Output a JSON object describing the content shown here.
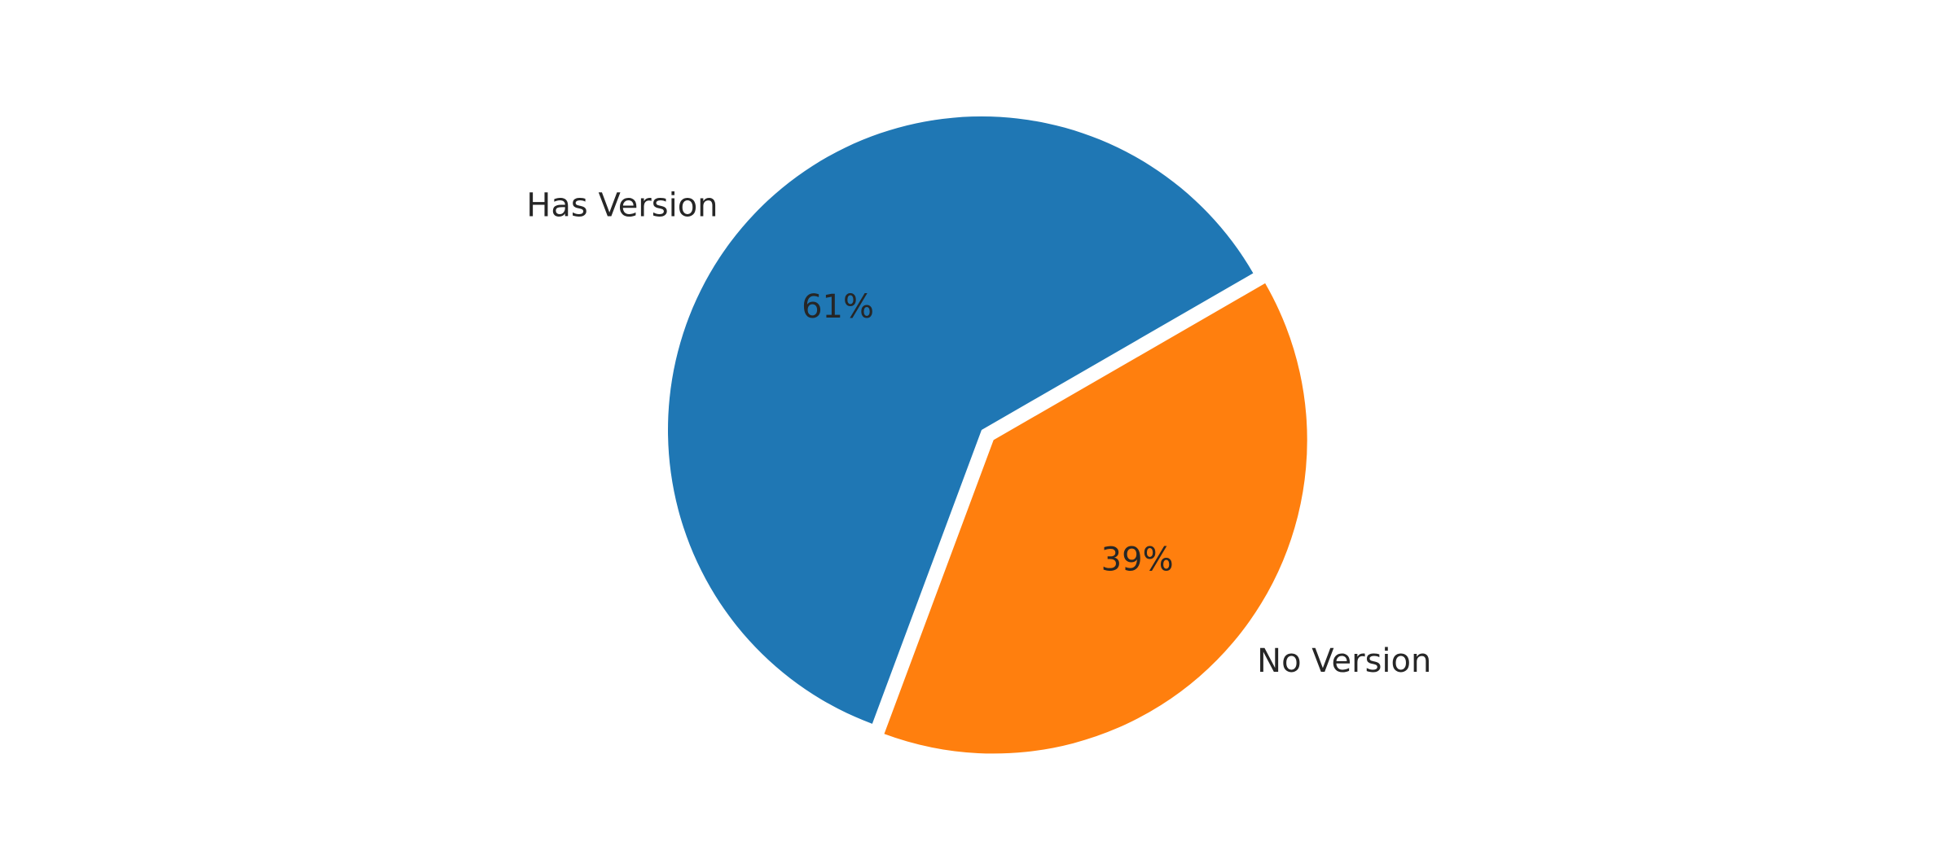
{
  "chart_data": {
    "type": "pie",
    "title": "",
    "slices": [
      {
        "label": "Has Version",
        "value": 61,
        "pct_label": "61%",
        "color": "#1f77b4",
        "explode": 0
      },
      {
        "label": "No Version",
        "value": 39,
        "pct_label": "39%",
        "color": "#ff7f0e",
        "explode": 0.05
      }
    ],
    "start_angle_deg": 30,
    "direction": "counterclockwise",
    "legend": "none",
    "grid": false
  }
}
